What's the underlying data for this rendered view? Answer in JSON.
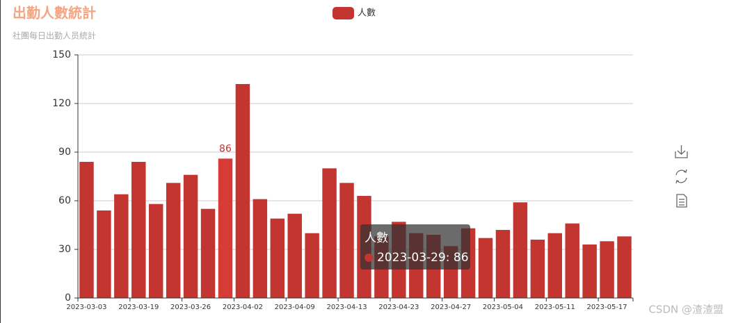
{
  "chart_data": {
    "type": "bar",
    "title": "出勤人數統計",
    "subtitle": "社團每日出勤人员統計",
    "categories": [
      "2023-03-03",
      null,
      null,
      "2023-03-19",
      null,
      null,
      "2023-03-26",
      null,
      null,
      "2023-04-02",
      null,
      null,
      "2023-04-09",
      null,
      null,
      "2023-04-13",
      null,
      null,
      "2023-04-23",
      null,
      null,
      "2023-04-27",
      null,
      null,
      "2023-05-04",
      null,
      null,
      "2023-05-11",
      null,
      null,
      "2023-05-17",
      null
    ],
    "series": [
      {
        "name": "人數",
        "color": "#c23531",
        "values": [
          84,
          54,
          64,
          84,
          58,
          71,
          76,
          55,
          86,
          132,
          61,
          49,
          52,
          40,
          80,
          71,
          63,
          38,
          47,
          40,
          39,
          32,
          43,
          37,
          42,
          59,
          36,
          40,
          46,
          33,
          35,
          38
        ]
      }
    ],
    "ylim": [
      0,
      150
    ],
    "yticks": [
      0,
      30,
      60,
      90,
      120,
      150
    ],
    "grid": true,
    "tooltip": {
      "title": "人數",
      "text": "2023-03-29: 86"
    },
    "watermark": "CSDN @渣渣盟"
  }
}
